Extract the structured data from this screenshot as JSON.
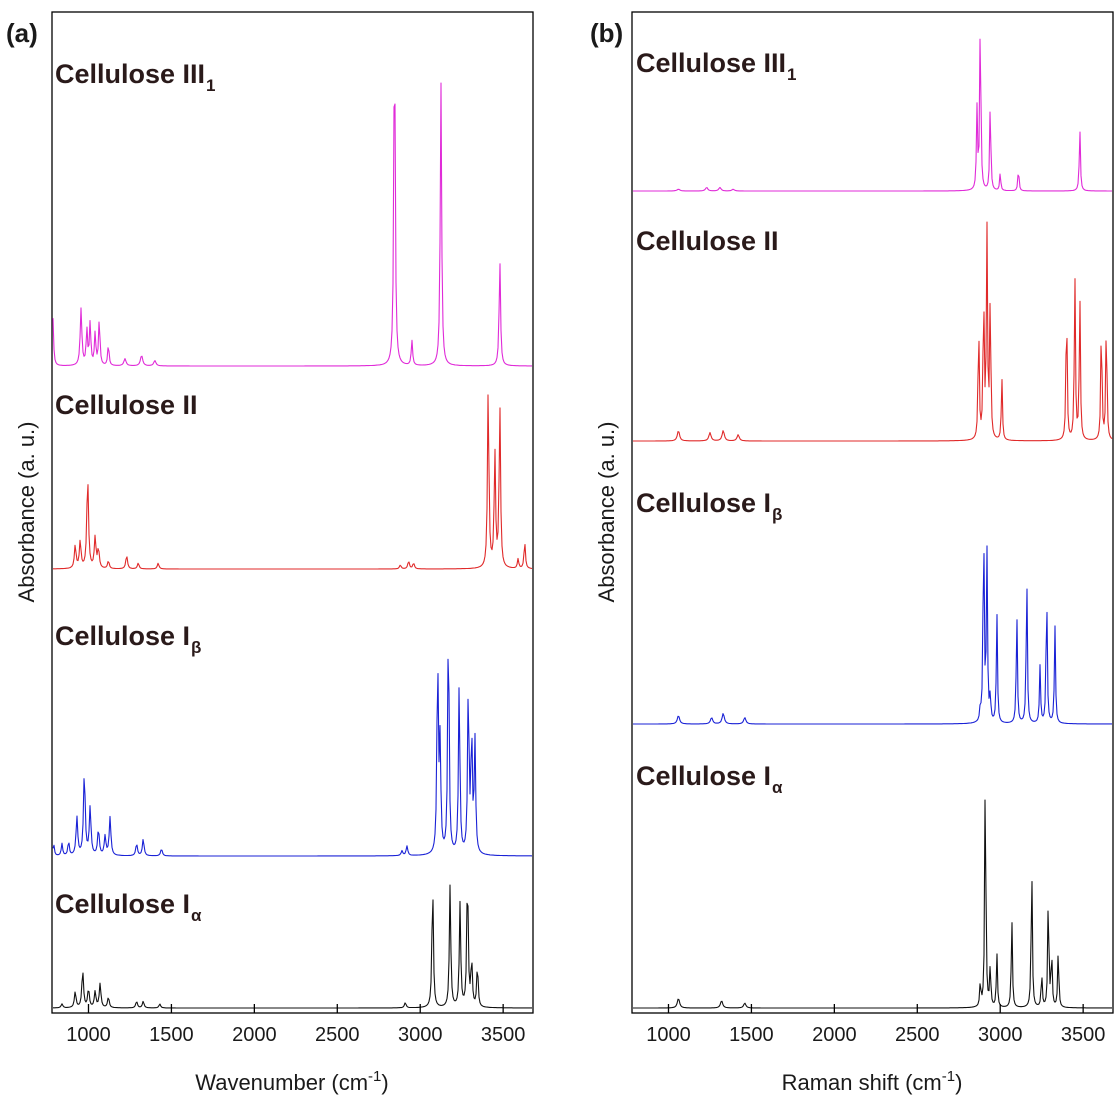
{
  "chart_data": [
    {
      "panel": "(a)",
      "type": "line",
      "xlabel": "Wavenumber (cm",
      "xlabel_sup": "-1",
      "xlabel_close": ")",
      "ylabel": "Absorbance (a. u.)",
      "xlim": [
        780,
        3680
      ],
      "xticks": [
        1000,
        1500,
        2000,
        2500,
        3000,
        3500
      ],
      "tick_labels": [
        "1000",
        "1500",
        "2000",
        "2500",
        "3000",
        "3500"
      ],
      "stacked": true,
      "series": [
        {
          "name": "Cellulose III",
          "sub": "1",
          "color": "#e02bd8",
          "peaks": [
            [
              785,
              0.14,
              5
            ],
            [
              955,
              0.16,
              6
            ],
            [
              990,
              0.1,
              5
            ],
            [
              1010,
              0.12,
              5
            ],
            [
              1040,
              0.09,
              5
            ],
            [
              1065,
              0.13,
              5
            ],
            [
              1120,
              0.06,
              5
            ],
            [
              1220,
              0.02,
              8
            ],
            [
              1320,
              0.03,
              8
            ],
            [
              1400,
              0.015,
              8
            ],
            [
              2845,
              1.0,
              5
            ],
            [
              2950,
              0.07,
              5
            ],
            [
              3125,
              0.8,
              5
            ],
            [
              3480,
              0.3,
              5
            ]
          ]
        },
        {
          "name": "Cellulose II",
          "sub": "",
          "color": "#e02a2a",
          "peaks": [
            [
              920,
              0.12,
              6
            ],
            [
              950,
              0.14,
              6
            ],
            [
              995,
              0.48,
              6
            ],
            [
              1040,
              0.16,
              6
            ],
            [
              1060,
              0.1,
              6
            ],
            [
              1120,
              0.04,
              6
            ],
            [
              1230,
              0.07,
              6
            ],
            [
              1300,
              0.03,
              6
            ],
            [
              1420,
              0.03,
              6
            ],
            [
              2880,
              0.02,
              6
            ],
            [
              2930,
              0.04,
              6
            ],
            [
              2960,
              0.03,
              6
            ],
            [
              3410,
              0.95,
              5
            ],
            [
              3450,
              0.6,
              5
            ],
            [
              3480,
              0.85,
              5
            ],
            [
              3590,
              0.05,
              5
            ],
            [
              3630,
              0.14,
              5
            ]
          ]
        },
        {
          "name": "Cellulose I",
          "sub": "β",
          "color": "#1a22d6",
          "peaks": [
            [
              790,
              0.05,
              5
            ],
            [
              840,
              0.05,
              5
            ],
            [
              880,
              0.06,
              5
            ],
            [
              930,
              0.16,
              6
            ],
            [
              975,
              0.35,
              6
            ],
            [
              1010,
              0.2,
              6
            ],
            [
              1060,
              0.11,
              6
            ],
            [
              1100,
              0.08,
              6
            ],
            [
              1130,
              0.16,
              6
            ],
            [
              1290,
              0.05,
              6
            ],
            [
              1330,
              0.07,
              6
            ],
            [
              1440,
              0.03,
              6
            ],
            [
              2890,
              0.02,
              6
            ],
            [
              2920,
              0.04,
              6
            ],
            [
              3105,
              0.83,
              5
            ],
            [
              3120,
              0.45,
              5
            ],
            [
              3170,
              1.0,
              5
            ],
            [
              3235,
              0.72,
              5
            ],
            [
              3290,
              0.7,
              5
            ],
            [
              3310,
              0.5,
              5
            ],
            [
              3330,
              0.47,
              5
            ]
          ]
        },
        {
          "name": "Cellulose I",
          "sub": "α",
          "color": "#111111",
          "peaks": [
            [
              840,
              0.03,
              6
            ],
            [
              920,
              0.12,
              6
            ],
            [
              965,
              0.28,
              6
            ],
            [
              1000,
              0.14,
              6
            ],
            [
              1040,
              0.12,
              6
            ],
            [
              1070,
              0.18,
              6
            ],
            [
              1120,
              0.08,
              6
            ],
            [
              1290,
              0.05,
              6
            ],
            [
              1330,
              0.05,
              6
            ],
            [
              1430,
              0.03,
              6
            ],
            [
              2910,
              0.04,
              6
            ],
            [
              3075,
              0.95,
              5
            ],
            [
              3180,
              0.92,
              5
            ],
            [
              3240,
              0.78,
              5
            ],
            [
              3285,
              1.02,
              5
            ],
            [
              3310,
              0.35,
              5
            ],
            [
              3345,
              0.32,
              5
            ]
          ]
        }
      ]
    },
    {
      "panel": "(b)",
      "type": "line",
      "xlabel": "Raman shift (cm",
      "xlabel_sup": "-1",
      "xlabel_close": ")",
      "ylabel": "Absorbance (a. u.)",
      "xlim": [
        780,
        3680
      ],
      "xticks": [
        1000,
        1500,
        2000,
        2500,
        3000,
        3500
      ],
      "tick_labels": [
        "1000",
        "1500",
        "2000",
        "2500",
        "3000",
        "3500"
      ],
      "stacked": true,
      "series": [
        {
          "name": "Cellulose III",
          "sub": "1",
          "color": "#e02bd8",
          "peaks": [
            [
              1060,
              0.01,
              10
            ],
            [
              1230,
              0.02,
              8
            ],
            [
              1310,
              0.02,
              8
            ],
            [
              1390,
              0.01,
              8
            ],
            [
              2860,
              0.45,
              4
            ],
            [
              2880,
              1.0,
              4
            ],
            [
              2940,
              0.5,
              4
            ],
            [
              3000,
              0.1,
              4
            ],
            [
              3110,
              0.13,
              4
            ],
            [
              3480,
              0.35,
              4
            ]
          ]
        },
        {
          "name": "Cellulose II",
          "sub": "",
          "color": "#e02a2a",
          "peaks": [
            [
              1060,
              0.05,
              8
            ],
            [
              1250,
              0.04,
              8
            ],
            [
              1330,
              0.05,
              8
            ],
            [
              1420,
              0.03,
              8
            ],
            [
              2870,
              0.58,
              4
            ],
            [
              2900,
              0.73,
              4
            ],
            [
              2920,
              1.0,
              4
            ],
            [
              2940,
              0.7,
              4
            ],
            [
              3010,
              0.3,
              4
            ],
            [
              3400,
              0.7,
              4
            ],
            [
              3450,
              0.8,
              4
            ],
            [
              3480,
              0.7,
              4
            ],
            [
              3610,
              0.6,
              4
            ],
            [
              3640,
              0.61,
              4
            ]
          ]
        },
        {
          "name": "Cellulose I",
          "sub": "β",
          "color": "#1a22d6",
          "peaks": [
            [
              1060,
              0.04,
              8
            ],
            [
              1260,
              0.03,
              8
            ],
            [
              1330,
              0.05,
              8
            ],
            [
              1460,
              0.03,
              8
            ],
            [
              2880,
              0.06,
              4
            ],
            [
              2900,
              1.0,
              4
            ],
            [
              2920,
              0.8,
              4
            ],
            [
              2940,
              0.12,
              4
            ],
            [
              2980,
              0.52,
              4
            ],
            [
              3100,
              0.53,
              4
            ],
            [
              3160,
              0.72,
              4
            ],
            [
              3240,
              0.27,
              4
            ],
            [
              3280,
              0.66,
              4
            ],
            [
              3330,
              0.46,
              4
            ]
          ]
        },
        {
          "name": "Cellulose I",
          "sub": "α",
          "color": "#111111",
          "peaks": [
            [
              1060,
              0.04,
              8
            ],
            [
              1320,
              0.03,
              8
            ],
            [
              1460,
              0.02,
              8
            ],
            [
              2880,
              0.1,
              4
            ],
            [
              2910,
              1.0,
              4
            ],
            [
              2940,
              0.17,
              4
            ],
            [
              2980,
              0.22,
              4
            ],
            [
              3070,
              0.37,
              4
            ],
            [
              3190,
              0.6,
              4
            ],
            [
              3250,
              0.14,
              4
            ],
            [
              3290,
              0.47,
              4
            ],
            [
              3310,
              0.23,
              4
            ],
            [
              3350,
              0.24,
              4
            ]
          ]
        }
      ]
    }
  ]
}
